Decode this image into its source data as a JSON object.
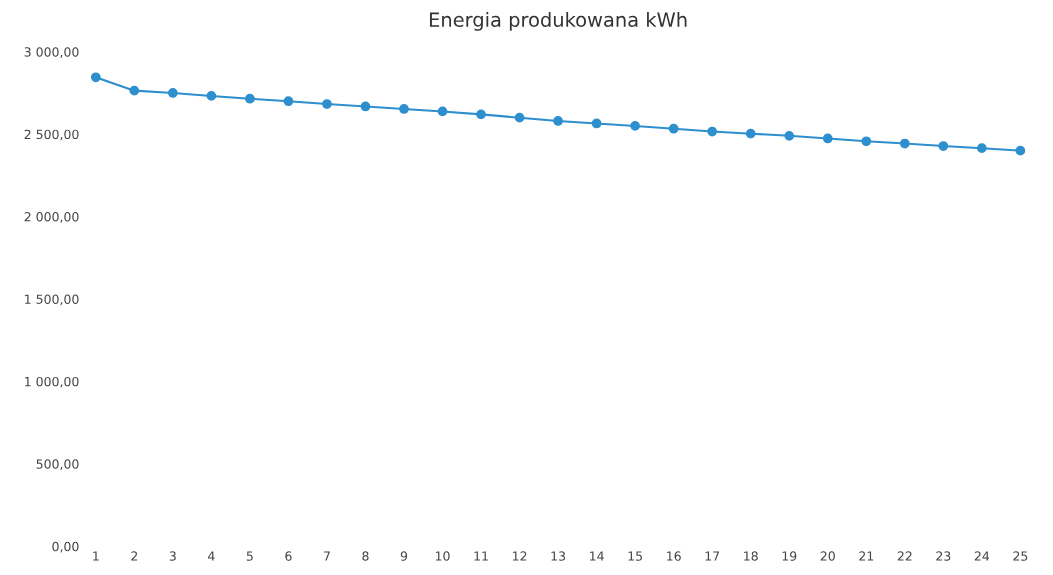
{
  "chart_data": {
    "type": "line",
    "title": "Energia produkowana kWh",
    "categories": [
      "1",
      "2",
      "3",
      "4",
      "5",
      "6",
      "7",
      "8",
      "9",
      "10",
      "11",
      "12",
      "13",
      "14",
      "15",
      "16",
      "17",
      "18",
      "19",
      "20",
      "21",
      "22",
      "23",
      "24",
      "25"
    ],
    "series": [
      {
        "color": "#2e8fce",
        "values": [
          2845,
          2764,
          2750,
          2732,
          2715,
          2700,
          2683,
          2668,
          2653,
          2638,
          2620,
          2600,
          2580,
          2565,
          2550,
          2533,
          2516,
          2503,
          2490,
          2474,
          2457,
          2443,
          2428,
          2415,
          2400
        ]
      }
    ],
    "ylim": [
      0,
      3000
    ],
    "yticks": [
      {
        "value": 0,
        "label": "0,00"
      },
      {
        "value": 500,
        "label": "500,00"
      },
      {
        "value": 1000,
        "label": "1 000,00"
      },
      {
        "value": 1500,
        "label": "1 500,00"
      },
      {
        "value": 2000,
        "label": "2 000,00"
      },
      {
        "value": 2500,
        "label": "2 500,00"
      },
      {
        "value": 3000,
        "label": "3 000,00"
      }
    ],
    "grid": false,
    "marker": "circle",
    "line_style": "solid"
  }
}
